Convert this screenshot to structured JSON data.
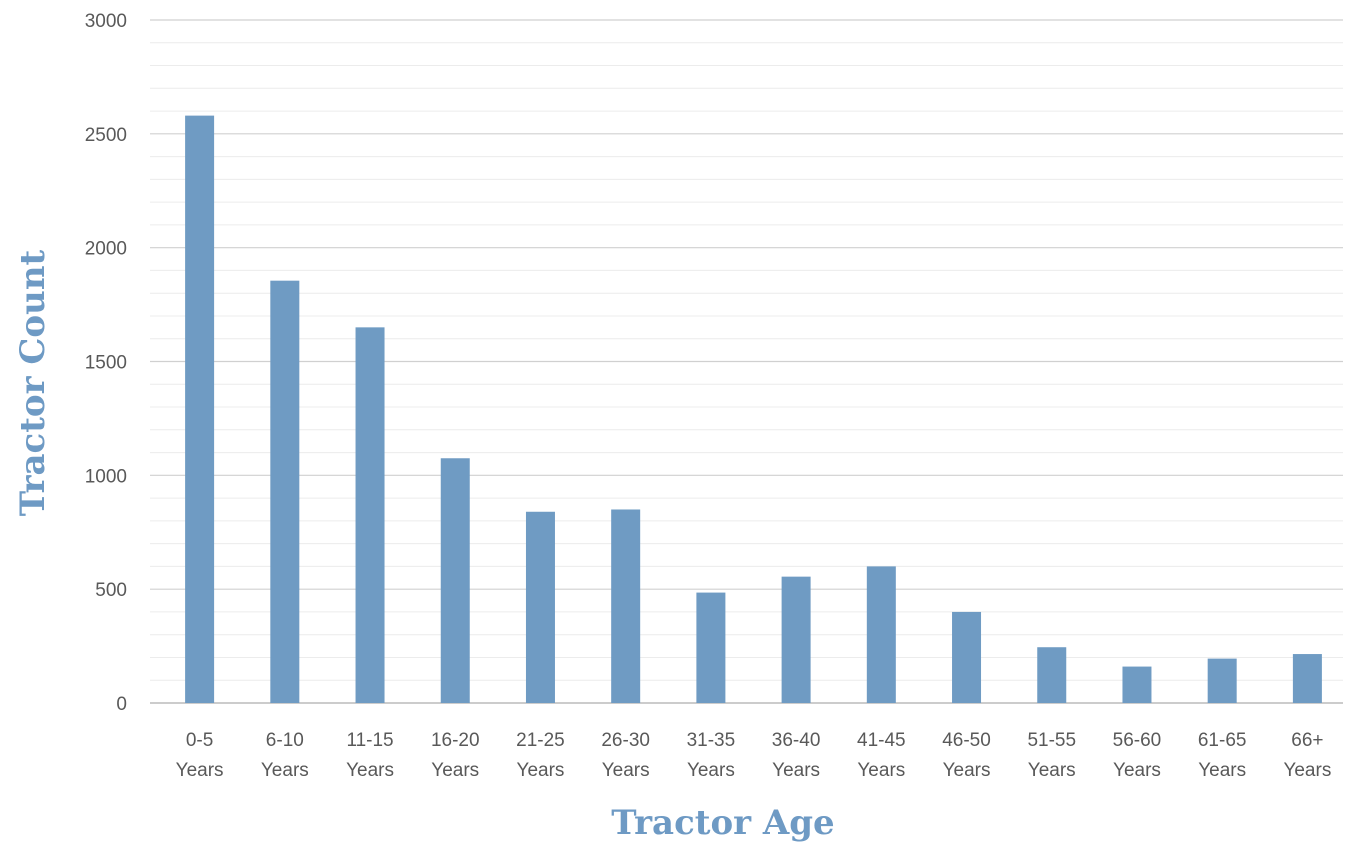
{
  "chart_data": {
    "type": "bar",
    "categories": [
      [
        "0-5",
        "Years"
      ],
      [
        "6-10",
        "Years"
      ],
      [
        "11-15",
        "Years"
      ],
      [
        "16-20",
        "Years"
      ],
      [
        "21-25",
        "Years"
      ],
      [
        "26-30",
        "Years"
      ],
      [
        "31-35",
        "Years"
      ],
      [
        "36-40",
        "Years"
      ],
      [
        "41-45",
        "Years"
      ],
      [
        "46-50",
        "Years"
      ],
      [
        "51-55",
        "Years"
      ],
      [
        "56-60",
        "Years"
      ],
      [
        "61-65",
        "Years"
      ],
      [
        "66+",
        "Years"
      ]
    ],
    "values": [
      2580,
      1855,
      1650,
      1075,
      840,
      850,
      485,
      555,
      600,
      400,
      245,
      160,
      195,
      215
    ],
    "xlabel": "Tractor Age",
    "ylabel": "Tractor Count",
    "ylim": [
      0,
      3000
    ],
    "yticks": [
      "0",
      "500",
      "1000",
      "1500",
      "2000",
      "2500",
      "3000"
    ],
    "minor_grid_step": 100,
    "grid": true,
    "legend": "none",
    "bar_color": "#6f9bc3",
    "title_color": "#6e9ac4"
  }
}
